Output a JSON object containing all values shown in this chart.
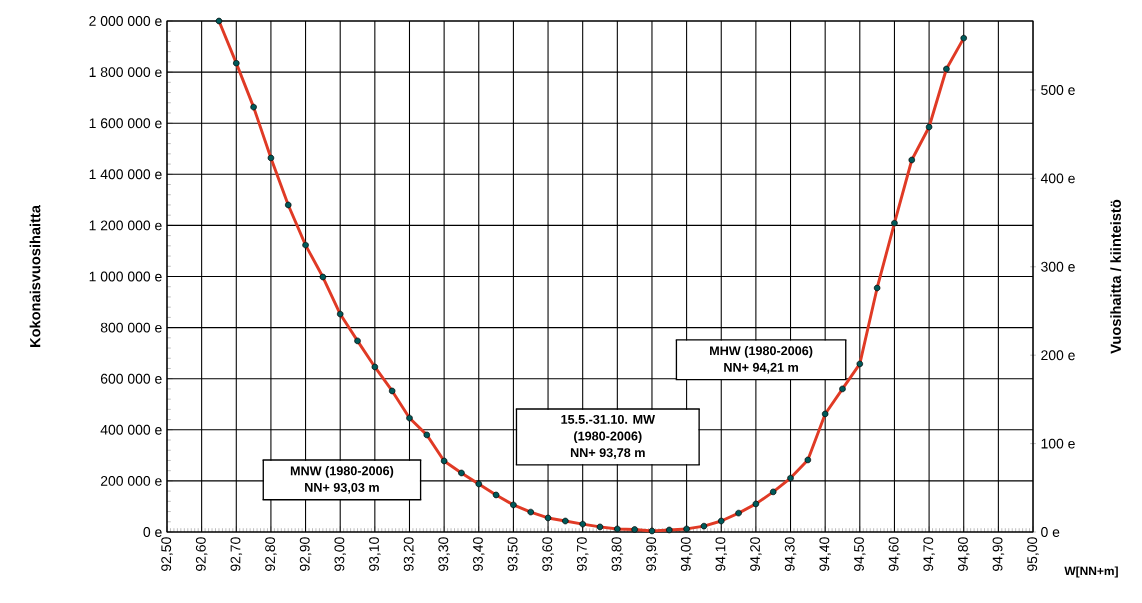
{
  "chart_data": {
    "type": "line",
    "xlabel": "W[NN+m]",
    "ylabel": "Kokonaisvuosihaitta",
    "y2label": "Vuosihaitta / kiinteistö",
    "x": [
      92.65,
      92.7,
      92.75,
      92.8,
      92.85,
      92.9,
      92.95,
      93.0,
      93.05,
      93.1,
      93.15,
      93.2,
      93.25,
      93.3,
      93.35,
      93.4,
      93.45,
      93.5,
      93.55,
      93.6,
      93.65,
      93.7,
      93.75,
      93.8,
      93.85,
      93.9,
      93.95,
      94.0,
      94.05,
      94.1,
      94.15,
      94.2,
      94.25,
      94.3,
      94.35,
      94.4,
      94.45,
      94.5,
      94.55,
      94.6,
      94.65,
      94.7,
      94.75,
      94.8
    ],
    "series": [
      {
        "color": "#e03a25",
        "values": [
          2000000,
          1835000,
          1663000,
          1464000,
          1280000,
          1123000,
          998000,
          853000,
          748000,
          646000,
          552000,
          446000,
          380000,
          278000,
          231000,
          188000,
          145000,
          106000,
          78000,
          55000,
          43000,
          31000,
          20000,
          12000,
          10000,
          4000,
          8000,
          12000,
          23000,
          43000,
          74000,
          110000,
          157000,
          211000,
          282000,
          462000,
          560000,
          658000,
          955000,
          1209000,
          1456000,
          1585000,
          1812000,
          1933000
        ]
      }
    ],
    "xlim": [
      92.5,
      95.0
    ],
    "xticks": [
      {
        "value": 92.5,
        "label": "92,50"
      },
      {
        "value": 92.6,
        "label": "92,60"
      },
      {
        "value": 92.7,
        "label": "92,70"
      },
      {
        "value": 92.8,
        "label": "92,80"
      },
      {
        "value": 92.9,
        "label": "92,90"
      },
      {
        "value": 93.0,
        "label": "93,00"
      },
      {
        "value": 93.1,
        "label": "93,10"
      },
      {
        "value": 93.2,
        "label": "93,20"
      },
      {
        "value": 93.3,
        "label": "93,30"
      },
      {
        "value": 93.4,
        "label": "93,40"
      },
      {
        "value": 93.5,
        "label": "93,50"
      },
      {
        "value": 93.6,
        "label": "93,60"
      },
      {
        "value": 93.7,
        "label": "93,70"
      },
      {
        "value": 93.8,
        "label": "93,80"
      },
      {
        "value": 93.9,
        "label": "93,90"
      },
      {
        "value": 94.0,
        "label": "94,00"
      },
      {
        "value": 94.1,
        "label": "94,10"
      },
      {
        "value": 94.2,
        "label": "94,20"
      },
      {
        "value": 94.3,
        "label": "94,30"
      },
      {
        "value": 94.4,
        "label": "94,40"
      },
      {
        "value": 94.5,
        "label": "94,50"
      },
      {
        "value": 94.6,
        "label": "94,60"
      },
      {
        "value": 94.7,
        "label": "94,70"
      },
      {
        "value": 94.8,
        "label": "94,80"
      },
      {
        "value": 94.9,
        "label": "94,90"
      },
      {
        "value": 95.0,
        "label": "95,00"
      }
    ],
    "ylim": [
      0,
      2000000
    ],
    "yticks": [
      {
        "value": 0,
        "label": "0 e"
      },
      {
        "value": 200000,
        "label": "200 000 e"
      },
      {
        "value": 400000,
        "label": "400 000 e"
      },
      {
        "value": 600000,
        "label": "600 000 e"
      },
      {
        "value": 800000,
        "label": "800 000 e"
      },
      {
        "value": 1000000,
        "label": "1 000 000 e"
      },
      {
        "value": 1200000,
        "label": "1 200 000 e"
      },
      {
        "value": 1400000,
        "label": "1 400 000 e"
      },
      {
        "value": 1600000,
        "label": "1 600 000 e"
      },
      {
        "value": 1800000,
        "label": "1 800 000 e"
      },
      {
        "value": 2000000,
        "label": "2 000 000 e"
      }
    ],
    "y2lim": [
      0,
      578
    ],
    "y2ticks": [
      {
        "value": 0,
        "label": "0 e"
      },
      {
        "value": 100,
        "label": "100 e"
      },
      {
        "value": 200,
        "label": "200 e"
      },
      {
        "value": 300,
        "label": "300 e"
      },
      {
        "value": 400,
        "label": "400 e"
      },
      {
        "value": 500,
        "label": "500 e"
      }
    ],
    "grid": true,
    "marker": "circle",
    "line_style": "solid",
    "annotations": [
      "MNW (1980-2006)",
      "NN+ 93,03 m",
      "15.5.-31.10. MW",
      "(1980-2006)",
      "NN+ 93,78 m",
      "MHW (1980-2006)",
      "NN+ 94,21 m"
    ]
  }
}
